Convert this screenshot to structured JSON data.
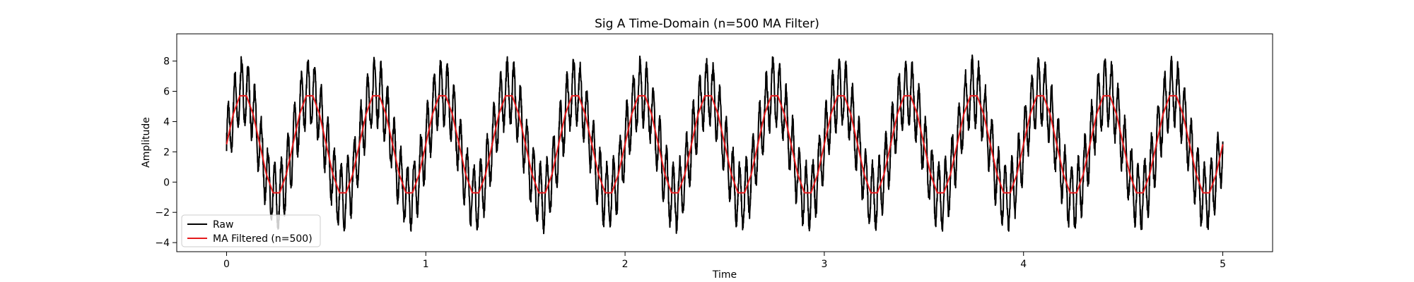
{
  "chart_data": {
    "type": "line",
    "title": "Sig A Time-Domain (n=500 MA Filter)",
    "xlabel": "Time",
    "ylabel": "Amplitude",
    "xlim": [
      -0.25,
      5.25
    ],
    "ylim": [
      -4.6,
      9.8
    ],
    "xticks": [
      0,
      1,
      2,
      3,
      4,
      5
    ],
    "yticks": [
      -4,
      -2,
      0,
      2,
      4,
      6,
      8
    ],
    "grid": false,
    "legend": {
      "position": "lower-left"
    },
    "series": [
      {
        "name": "Raw",
        "color": "#000000",
        "signal": {
          "offset": 2.5,
          "components": [
            {
              "amplitude": 3.5,
              "frequency_hz": 3
            },
            {
              "amplitude": 2.0,
              "frequency_hz": 30
            }
          ]
        },
        "x_range": [
          0,
          5
        ]
      },
      {
        "name": "MA Filtered (n=500)",
        "color": "#e41a1c",
        "window": 500,
        "x_range": [
          0,
          5
        ]
      }
    ]
  }
}
